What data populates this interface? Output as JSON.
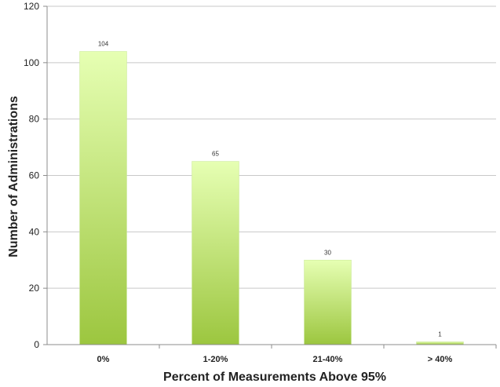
{
  "chart_data": {
    "type": "bar",
    "categories": [
      "0%",
      "1-20%",
      "21-40%",
      "> 40%"
    ],
    "values": [
      104,
      65,
      30,
      1
    ],
    "data_labels": [
      "104",
      "65",
      "30",
      "1"
    ],
    "xlabel": "Percent of Measurements Above 95%",
    "ylabel": "Number of Administrations",
    "ylim": [
      0,
      120
    ],
    "yticks": [
      0,
      20,
      40,
      60,
      80,
      100,
      120
    ],
    "grid": true,
    "legend": "none",
    "colors": {
      "bar_top": "#e6ffb3",
      "bar_bottom": "#9cc63f",
      "grid": "#c8c8c8",
      "axis": "#8c8c8c"
    }
  }
}
